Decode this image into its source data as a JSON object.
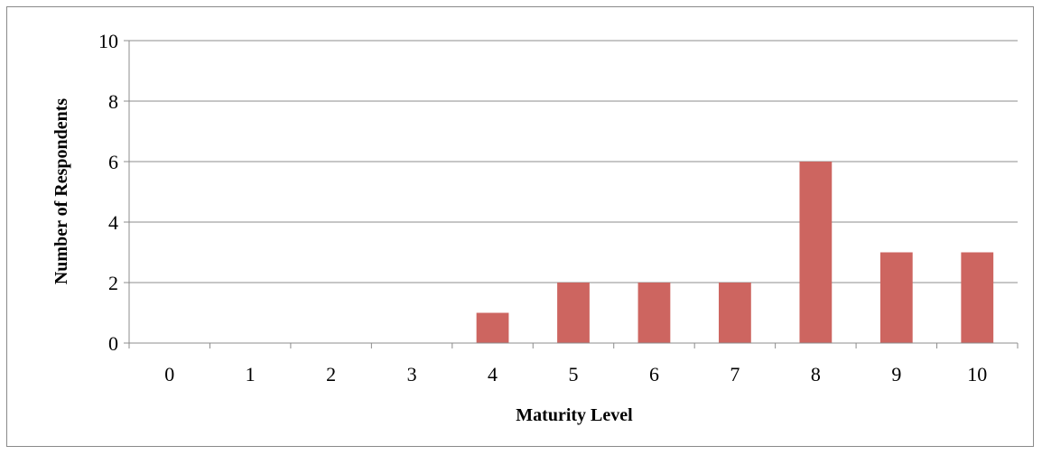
{
  "chart_data": {
    "type": "bar",
    "title": "",
    "xlabel": "Maturity Level",
    "ylabel": "Number of Respondents",
    "categories": [
      "0",
      "1",
      "2",
      "3",
      "4",
      "5",
      "6",
      "7",
      "8",
      "9",
      "10"
    ],
    "values": [
      0,
      0,
      0,
      0,
      1,
      2,
      2,
      2,
      6,
      3,
      3
    ],
    "ylim": [
      0,
      10
    ],
    "yticks": [
      0,
      2,
      4,
      6,
      8,
      10
    ],
    "grid": true,
    "legend": "none",
    "colors": {
      "bar": "#cd6560",
      "grid": "#8c8c8c",
      "axis": "#8c8c8c",
      "frame": "#8a8a8a"
    }
  }
}
